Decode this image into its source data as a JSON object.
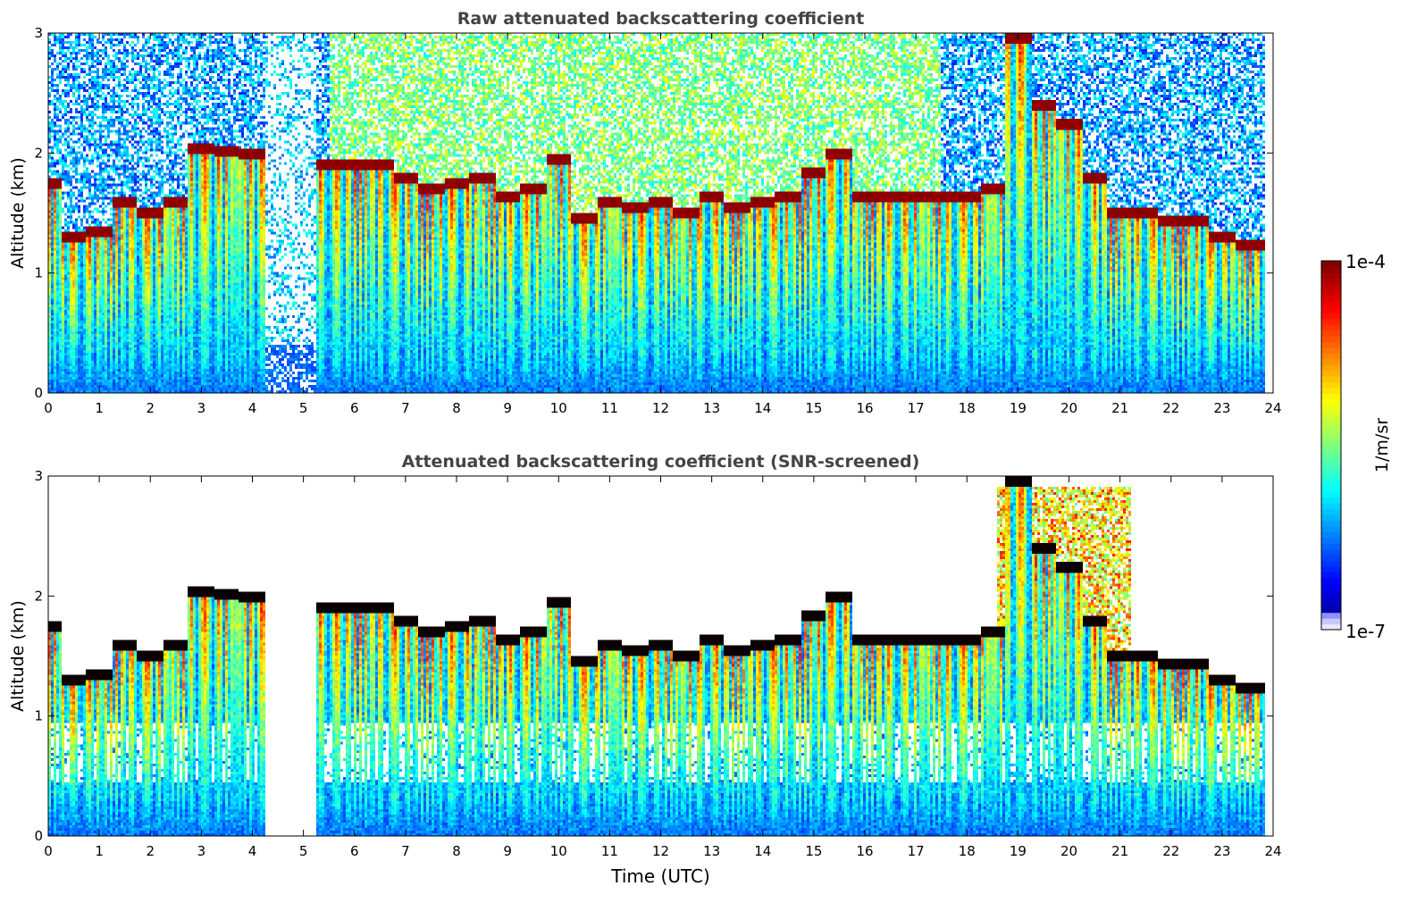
{
  "chart_data": [
    {
      "type": "heatmap",
      "title": "Raw attenuated backscattering coefficient",
      "xlabel": "",
      "ylabel": "Altitude (km)",
      "xlim": [
        0,
        24
      ],
      "ylim": [
        0,
        3
      ],
      "xticks": [
        "0",
        "1",
        "2",
        "3",
        "4",
        "5",
        "6",
        "7",
        "8",
        "9",
        "10",
        "11",
        "12",
        "13",
        "14",
        "15",
        "16",
        "17",
        "18",
        "19",
        "20",
        "21",
        "22",
        "23",
        "24"
      ],
      "yticks": [
        "0",
        "1",
        "2",
        "3"
      ],
      "x_hours": [
        0,
        0.5,
        1,
        1.5,
        2,
        2.5,
        3,
        3.5,
        4,
        4.5,
        5,
        5.5,
        6,
        6.5,
        7,
        7.5,
        8,
        8.5,
        9,
        9.5,
        10,
        10.5,
        11,
        11.5,
        12,
        12.5,
        13,
        13.5,
        14,
        14.5,
        15,
        15.5,
        16,
        16.5,
        17,
        17.5,
        18,
        18.5,
        19,
        19.5,
        20,
        20.5,
        21,
        21.5,
        22,
        22.5,
        23,
        23.5
      ],
      "cloud_base_km": [
        1.7,
        1.25,
        1.3,
        1.55,
        1.45,
        1.55,
        2.0,
        1.98,
        1.95,
        null,
        null,
        1.85,
        1.85,
        1.85,
        1.75,
        1.65,
        1.7,
        1.75,
        1.6,
        1.65,
        1.9,
        1.4,
        1.55,
        1.5,
        1.55,
        1.45,
        1.6,
        1.5,
        1.55,
        1.6,
        1.8,
        1.95,
        1.6,
        1.6,
        1.6,
        1.6,
        1.6,
        1.65,
        2.9,
        2.35,
        2.2,
        1.75,
        1.45,
        1.45,
        1.38,
        1.38,
        1.25,
        1.18
      ],
      "noise": "raw",
      "scale": "log"
    },
    {
      "type": "heatmap",
      "title": "Attenuated backscattering coefficient (SNR-screened)",
      "xlabel": "Time (UTC)",
      "ylabel": "Altitude (km)",
      "xlim": [
        0,
        24
      ],
      "ylim": [
        0,
        3
      ],
      "xticks": [
        "0",
        "1",
        "2",
        "3",
        "4",
        "5",
        "6",
        "7",
        "8",
        "9",
        "10",
        "11",
        "12",
        "13",
        "14",
        "15",
        "16",
        "17",
        "18",
        "19",
        "20",
        "21",
        "22",
        "23",
        "24"
      ],
      "yticks": [
        "0",
        "1",
        "2",
        "3"
      ],
      "x_hours": [
        0,
        0.5,
        1,
        1.5,
        2,
        2.5,
        3,
        3.5,
        4,
        4.5,
        5,
        5.5,
        6,
        6.5,
        7,
        7.5,
        8,
        8.5,
        9,
        9.5,
        10,
        10.5,
        11,
        11.5,
        12,
        12.5,
        13,
        13.5,
        14,
        14.5,
        15,
        15.5,
        16,
        16.5,
        17,
        17.5,
        18,
        18.5,
        19,
        19.5,
        20,
        20.5,
        21,
        21.5,
        22,
        22.5,
        23,
        23.5
      ],
      "cloud_base_km": [
        1.7,
        1.25,
        1.3,
        1.55,
        1.45,
        1.55,
        2.0,
        1.98,
        1.95,
        null,
        null,
        1.85,
        1.85,
        1.85,
        1.75,
        1.65,
        1.7,
        1.75,
        1.6,
        1.65,
        1.9,
        1.4,
        1.55,
        1.5,
        1.55,
        1.45,
        1.6,
        1.5,
        1.55,
        1.6,
        1.8,
        1.95,
        1.6,
        1.6,
        1.6,
        1.6,
        1.6,
        1.65,
        2.9,
        2.35,
        2.2,
        1.75,
        1.45,
        1.45,
        1.38,
        1.38,
        1.25,
        1.18
      ],
      "noise": "screened",
      "scale": "log"
    }
  ],
  "colorbar": {
    "label": "1/m/sr",
    "max_label": "1e-4",
    "min_label": "1e-7",
    "vmin": 1e-07,
    "vmax": 0.0001,
    "scale": "log",
    "colormap": "jet"
  }
}
